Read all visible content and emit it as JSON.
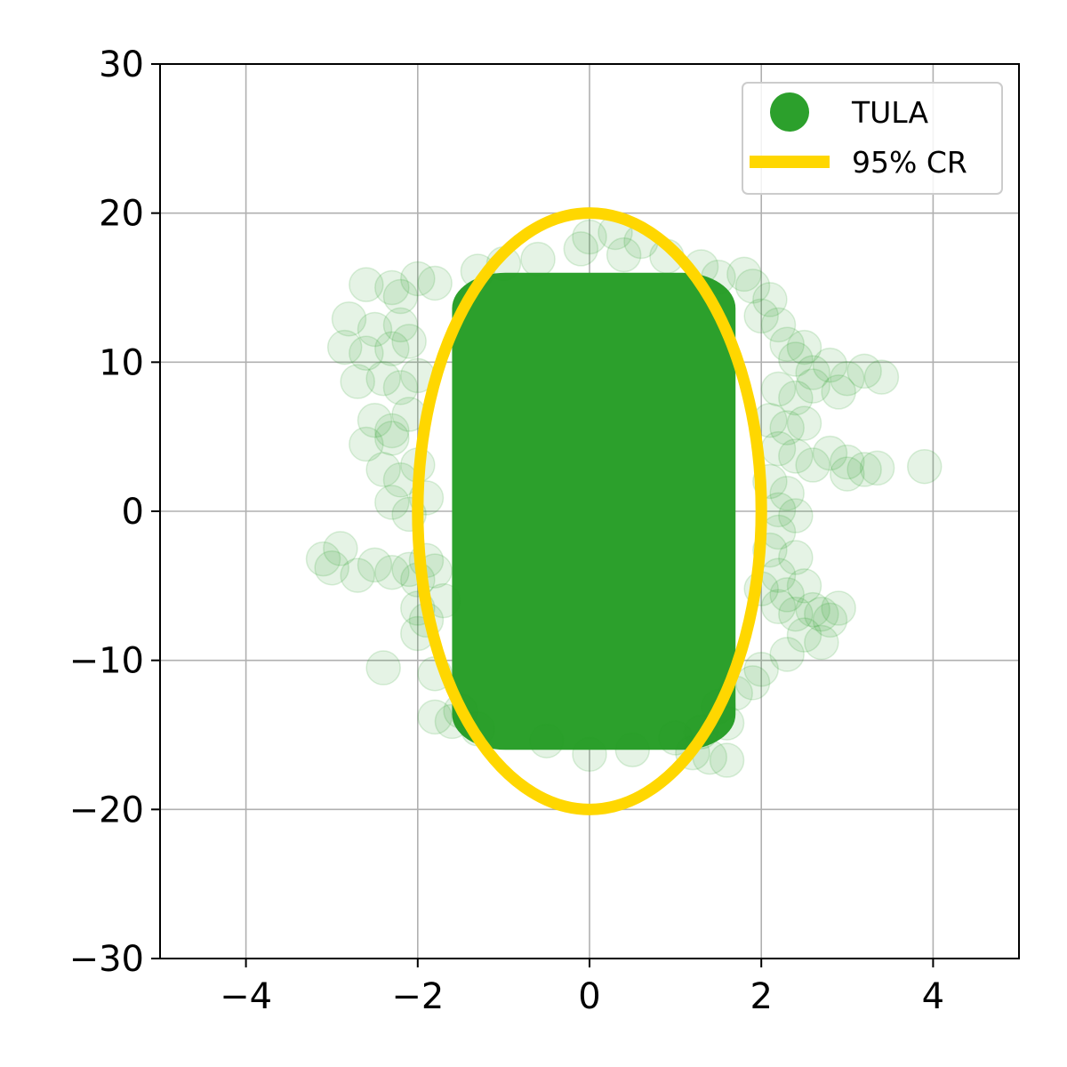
{
  "chart_data": {
    "type": "scatter",
    "title": "",
    "xlabel": "",
    "ylabel": "",
    "xlim": [
      -5,
      5
    ],
    "ylim": [
      -30,
      30
    ],
    "xticks": [
      -4,
      -2,
      0,
      2,
      4
    ],
    "yticks": [
      -30,
      -20,
      -10,
      0,
      10,
      20,
      30
    ],
    "xtick_labels": [
      "−4",
      "−2",
      "0",
      "2",
      "4"
    ],
    "ytick_labels": [
      "−30",
      "−20",
      "−10",
      "0",
      "10",
      "20",
      "30"
    ],
    "grid": true,
    "legend_position": "top-right",
    "series": [
      {
        "name": "TULA",
        "kind": "scatter",
        "color": "#2ca02c",
        "alpha": 0.12,
        "core_region": {
          "x_range": [
            -1.6,
            1.7
          ],
          "y_range": [
            -16,
            16
          ]
        },
        "points": [
          [
            -3.1,
            -3.2
          ],
          [
            -2.9,
            -2.5
          ],
          [
            -3.0,
            -3.8
          ],
          [
            -2.7,
            -4.3
          ],
          [
            -2.5,
            -3.6
          ],
          [
            -2.3,
            -4.1
          ],
          [
            -2.1,
            -3.9
          ],
          [
            -2.0,
            -4.6
          ],
          [
            -1.9,
            -3.3
          ],
          [
            -1.8,
            -4.0
          ],
          [
            -2.4,
            -10.5
          ],
          [
            -2.0,
            -8.2
          ],
          [
            -1.8,
            -10.9
          ],
          [
            -2.6,
            15.2
          ],
          [
            -2.3,
            15.0
          ],
          [
            -2.2,
            14.4
          ],
          [
            -2.0,
            15.6
          ],
          [
            -1.8,
            15.3
          ],
          [
            -2.8,
            12.9
          ],
          [
            -2.5,
            12.2
          ],
          [
            -2.2,
            12.5
          ],
          [
            -2.85,
            11.0
          ],
          [
            -2.6,
            10.6
          ],
          [
            -2.3,
            10.9
          ],
          [
            -2.1,
            11.4
          ],
          [
            -2.7,
            8.7
          ],
          [
            -2.4,
            8.9
          ],
          [
            -2.2,
            8.3
          ],
          [
            -2.0,
            9.1
          ],
          [
            -2.5,
            6.1
          ],
          [
            -2.3,
            5.4
          ],
          [
            -2.6,
            4.5
          ],
          [
            -2.3,
            4.9
          ],
          [
            -2.1,
            6.5
          ],
          [
            -2.4,
            2.8
          ],
          [
            -2.2,
            2.1
          ],
          [
            -2.0,
            3.1
          ],
          [
            -2.3,
            0.6
          ],
          [
            -2.1,
            -0.2
          ],
          [
            -1.9,
            0.9
          ],
          [
            -2.0,
            -6.5
          ],
          [
            -1.9,
            -7.3
          ],
          [
            -1.7,
            -6.0
          ],
          [
            -1.8,
            -13.8
          ],
          [
            -1.6,
            -14.1
          ],
          [
            -1.5,
            -13.4
          ],
          [
            -1.3,
            -14.6
          ],
          [
            -0.5,
            -15.4
          ],
          [
            0.0,
            -16.3
          ],
          [
            0.5,
            -16.0
          ],
          [
            1.0,
            -15.2
          ],
          [
            1.3,
            -14.8
          ],
          [
            1.4,
            -16.5
          ],
          [
            1.6,
            -16.7
          ],
          [
            1.2,
            -16.2
          ],
          [
            0.0,
            18.4
          ],
          [
            0.3,
            18.7
          ],
          [
            0.6,
            18.1
          ],
          [
            -0.1,
            17.6
          ],
          [
            0.4,
            17.2
          ],
          [
            0.9,
            17.1
          ],
          [
            1.3,
            16.4
          ],
          [
            1.5,
            15.7
          ],
          [
            1.8,
            15.9
          ],
          [
            1.9,
            15.1
          ],
          [
            2.1,
            14.2
          ],
          [
            2.0,
            13.1
          ],
          [
            2.2,
            12.5
          ],
          [
            2.3,
            11.2
          ],
          [
            2.5,
            11.0
          ],
          [
            2.4,
            10.2
          ],
          [
            2.6,
            9.3
          ],
          [
            2.8,
            9.8
          ],
          [
            3.0,
            8.9
          ],
          [
            3.2,
            9.4
          ],
          [
            3.4,
            9.0
          ],
          [
            2.2,
            8.2
          ],
          [
            2.4,
            7.6
          ],
          [
            2.6,
            8.4
          ],
          [
            2.9,
            8.0
          ],
          [
            2.1,
            6.1
          ],
          [
            2.3,
            5.6
          ],
          [
            2.5,
            5.9
          ],
          [
            2.2,
            4.2
          ],
          [
            2.4,
            3.7
          ],
          [
            2.6,
            3.1
          ],
          [
            2.8,
            3.9
          ],
          [
            3.0,
            3.3
          ],
          [
            3.2,
            2.8
          ],
          [
            3.35,
            2.9
          ],
          [
            3.0,
            2.5
          ],
          [
            3.9,
            3.0
          ],
          [
            2.1,
            2.0
          ],
          [
            2.3,
            1.2
          ],
          [
            2.2,
            0.1
          ],
          [
            2.4,
            -0.3
          ],
          [
            2.2,
            -1.4
          ],
          [
            2.1,
            -2.6
          ],
          [
            2.4,
            -3.1
          ],
          [
            2.2,
            -4.3
          ],
          [
            2.0,
            -5.2
          ],
          [
            2.3,
            -5.6
          ],
          [
            2.5,
            -5.0
          ],
          [
            2.2,
            -6.4
          ],
          [
            2.4,
            -6.9
          ],
          [
            2.6,
            -6.6
          ],
          [
            2.8,
            -7.3
          ],
          [
            2.7,
            -6.9
          ],
          [
            2.9,
            -6.5
          ],
          [
            2.5,
            -8.3
          ],
          [
            2.7,
            -8.8
          ],
          [
            2.3,
            -9.6
          ],
          [
            2.0,
            -10.6
          ],
          [
            1.9,
            -11.5
          ],
          [
            1.7,
            -12.2
          ],
          [
            1.5,
            -13.1
          ],
          [
            1.6,
            -14.2
          ],
          [
            -1.3,
            16.1
          ],
          [
            -1.0,
            16.6
          ],
          [
            -0.6,
            16.9
          ]
        ]
      },
      {
        "name": "95% CR",
        "kind": "ellipse",
        "color": "#ffd700",
        "center": [
          0,
          0
        ],
        "semi_axes": [
          2.0,
          20.0
        ]
      }
    ]
  }
}
